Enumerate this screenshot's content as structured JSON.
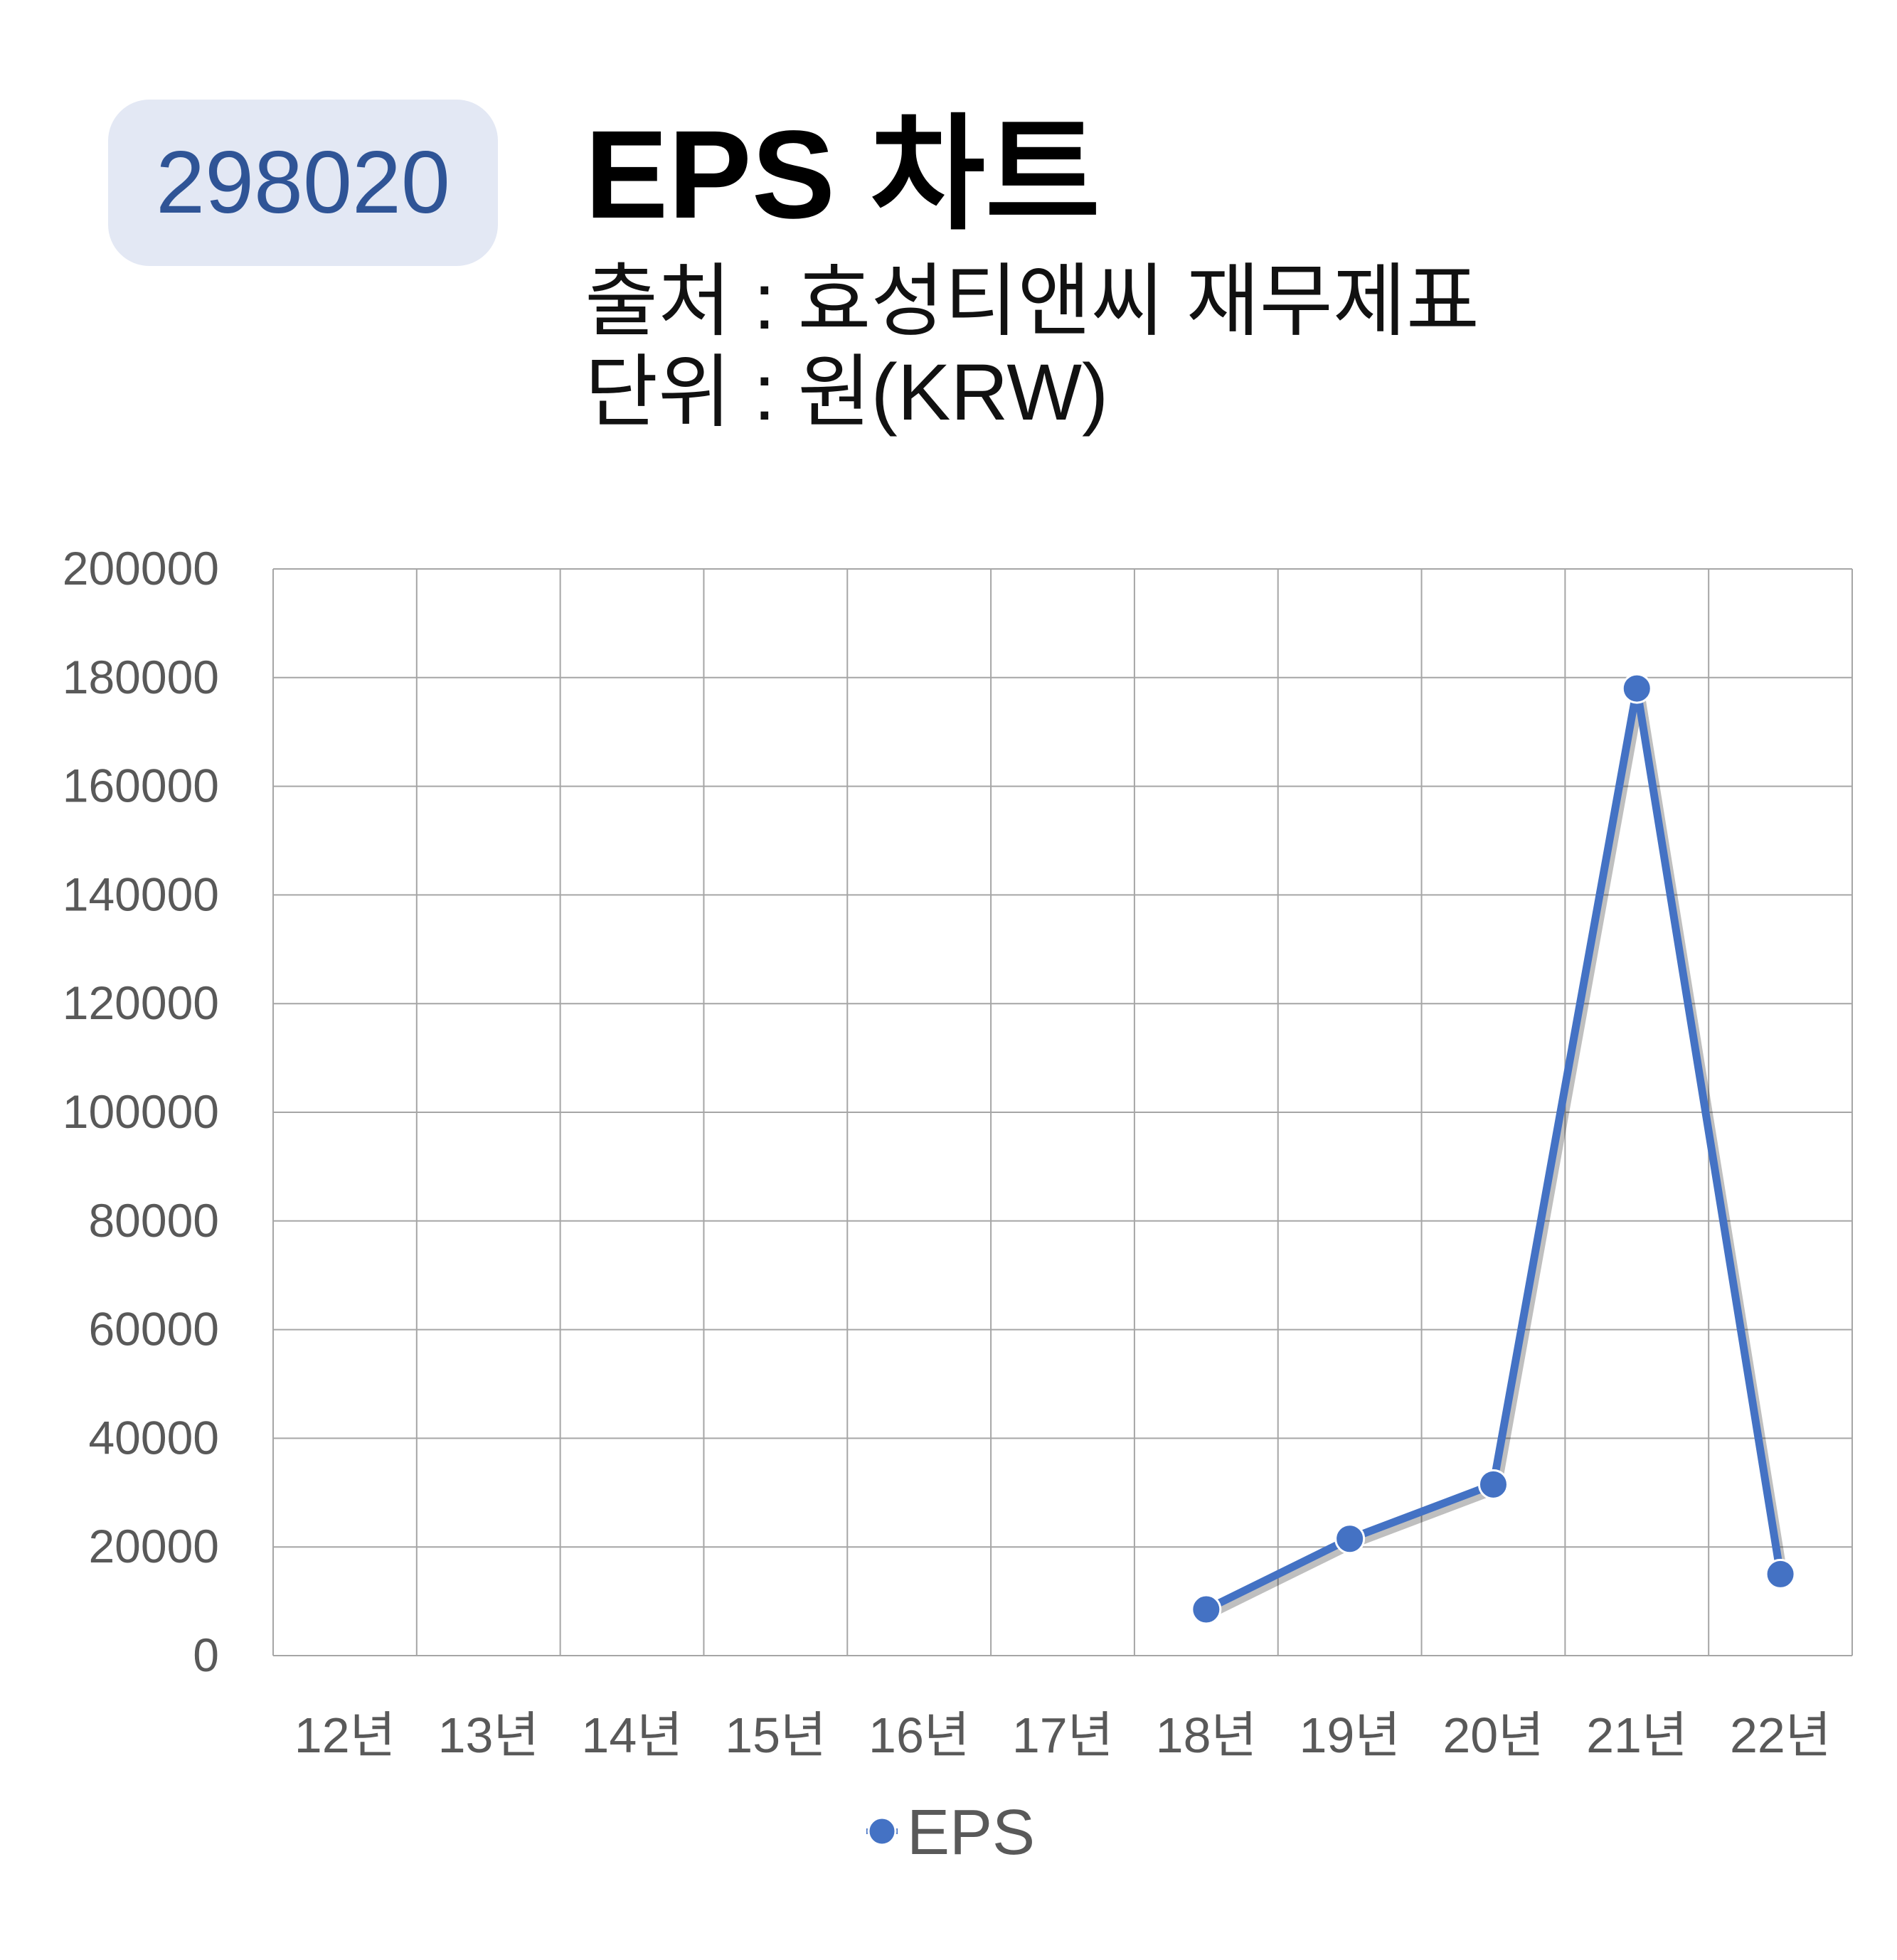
{
  "badge": {
    "code": "298020"
  },
  "header": {
    "title": "EPS 차트",
    "source": "출처 : 효성티앤씨 재무제표",
    "unit": "단위 : 원(KRW)"
  },
  "colors": {
    "series": "#4472c4",
    "badge_bg": "#e3e8f4",
    "badge_text": "#2f5496",
    "grid": "#a6a6a6"
  },
  "chart_data": {
    "type": "line",
    "title": "EPS 차트",
    "categories": [
      "12년",
      "13년",
      "14년",
      "15년",
      "16년",
      "17년",
      "18년",
      "19년",
      "20년",
      "21년",
      "22년"
    ],
    "series": [
      {
        "name": "EPS",
        "values": [
          null,
          null,
          null,
          null,
          null,
          null,
          8500,
          21500,
          31500,
          178000,
          15000
        ]
      }
    ],
    "ylim": [
      0,
      200000
    ],
    "yticks": [
      "200000",
      "180000",
      "160000",
      "140000",
      "120000",
      "100000",
      "80000",
      "60000",
      "40000",
      "20000",
      "0"
    ],
    "grid": true,
    "legend": "bottom"
  }
}
